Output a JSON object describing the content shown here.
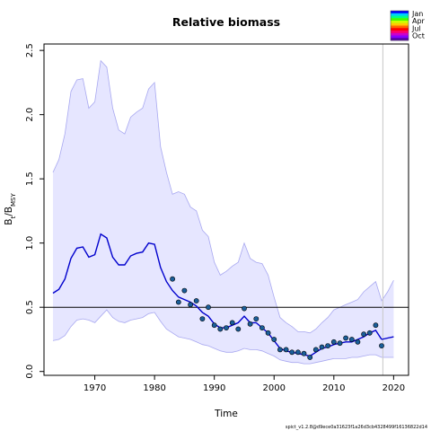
{
  "chart_data": {
    "type": "line",
    "title": "Relative biomass",
    "xlabel": "Time",
    "ylabel": "B_t/B_MSY",
    "xlim": [
      1961.5,
      2022.5
    ],
    "ylim": [
      -0.03,
      2.55
    ],
    "xticks": [
      "1970",
      "1980",
      "1990",
      "2000",
      "2010",
      "2020"
    ],
    "yticks": [
      "0.0",
      "0.5",
      "1.0",
      "1.5",
      "2.0",
      "2.5"
    ],
    "reference_line_y": 0.5,
    "vertical_line_x": 2018.2,
    "series": [
      {
        "kind": "estimate",
        "color": "#0000cd",
        "x": [
          1963,
          1964,
          1965,
          1966,
          1967,
          1968,
          1969,
          1970,
          1971,
          1972,
          1973,
          1974,
          1975,
          1976,
          1977,
          1978,
          1979,
          1980,
          1981,
          1982,
          1983,
          1984,
          1985,
          1986,
          1987,
          1988,
          1989,
          1990,
          1991,
          1992,
          1993,
          1994,
          1995,
          1996,
          1997,
          1998,
          1999,
          2000,
          2001,
          2002,
          2003,
          2004,
          2005,
          2006,
          2007,
          2008,
          2009,
          2010,
          2011,
          2012,
          2013,
          2014,
          2015,
          2016,
          2017,
          2018
        ],
        "y": [
          0.61,
          0.64,
          0.72,
          0.88,
          0.96,
          0.97,
          0.89,
          0.91,
          1.07,
          1.04,
          0.89,
          0.83,
          0.83,
          0.9,
          0.92,
          0.93,
          1.0,
          0.99,
          0.81,
          0.7,
          0.63,
          0.58,
          0.56,
          0.54,
          0.51,
          0.46,
          0.43,
          0.37,
          0.34,
          0.34,
          0.36,
          0.38,
          0.43,
          0.38,
          0.38,
          0.34,
          0.3,
          0.24,
          0.18,
          0.16,
          0.15,
          0.14,
          0.13,
          0.12,
          0.15,
          0.18,
          0.19,
          0.21,
          0.22,
          0.23,
          0.23,
          0.25,
          0.27,
          0.3,
          0.32,
          0.25
        ]
      },
      {
        "kind": "forecast",
        "color": "#0000cd",
        "x": [
          2018,
          2019,
          2020
        ],
        "y": [
          0.25,
          0.26,
          0.27
        ]
      }
    ],
    "confidence_band": {
      "color": "#e6e6ff",
      "x": [
        1963,
        1964,
        1965,
        1966,
        1967,
        1968,
        1969,
        1970,
        1971,
        1972,
        1973,
        1974,
        1975,
        1976,
        1977,
        1978,
        1979,
        1980,
        1981,
        1982,
        1983,
        1984,
        1985,
        1986,
        1987,
        1988,
        1989,
        1990,
        1991,
        1992,
        1993,
        1994,
        1995,
        1996,
        1997,
        1998,
        1999,
        2000,
        2001,
        2002,
        2003,
        2004,
        2005,
        2006,
        2007,
        2008,
        2009,
        2010,
        2011,
        2012,
        2013,
        2014,
        2015,
        2016,
        2017,
        2018,
        2019,
        2020
      ],
      "upper": [
        1.55,
        1.65,
        1.85,
        2.18,
        2.27,
        2.28,
        2.05,
        2.1,
        2.42,
        2.37,
        2.05,
        1.88,
        1.85,
        1.98,
        2.02,
        2.05,
        2.2,
        2.25,
        1.75,
        1.55,
        1.38,
        1.4,
        1.38,
        1.28,
        1.25,
        1.1,
        1.05,
        0.85,
        0.75,
        0.78,
        0.82,
        0.85,
        1.0,
        0.88,
        0.85,
        0.84,
        0.75,
        0.58,
        0.42,
        0.38,
        0.35,
        0.31,
        0.31,
        0.3,
        0.33,
        0.38,
        0.42,
        0.48,
        0.5,
        0.52,
        0.54,
        0.56,
        0.62,
        0.66,
        0.7,
        0.55,
        0.62,
        0.71
      ],
      "lower": [
        0.24,
        0.25,
        0.28,
        0.35,
        0.4,
        0.41,
        0.4,
        0.38,
        0.43,
        0.48,
        0.42,
        0.39,
        0.38,
        0.4,
        0.41,
        0.42,
        0.45,
        0.46,
        0.39,
        0.33,
        0.3,
        0.27,
        0.26,
        0.25,
        0.23,
        0.21,
        0.2,
        0.18,
        0.16,
        0.15,
        0.15,
        0.16,
        0.18,
        0.17,
        0.17,
        0.16,
        0.14,
        0.12,
        0.09,
        0.08,
        0.07,
        0.07,
        0.06,
        0.06,
        0.07,
        0.08,
        0.09,
        0.1,
        0.1,
        0.1,
        0.11,
        0.11,
        0.12,
        0.13,
        0.13,
        0.11,
        0.11,
        0.11
      ]
    },
    "observations": {
      "color": "#1a5e9a",
      "x": [
        1983,
        1984,
        1985,
        1986,
        1987,
        1988,
        1989,
        1990,
        1991,
        1992,
        1993,
        1994,
        1995,
        1996,
        1997,
        1998,
        1999,
        2000,
        2001,
        2002,
        2003,
        2004,
        2005,
        2006,
        2007,
        2008,
        2009,
        2010,
        2011,
        2012,
        2013,
        2014,
        2015,
        2016,
        2017,
        2018
      ],
      "y": [
        0.72,
        0.54,
        0.63,
        0.52,
        0.55,
        0.41,
        0.5,
        0.36,
        0.33,
        0.34,
        0.38,
        0.33,
        0.49,
        0.37,
        0.41,
        0.34,
        0.3,
        0.25,
        0.17,
        0.17,
        0.15,
        0.15,
        0.14,
        0.11,
        0.17,
        0.19,
        0.2,
        0.23,
        0.22,
        0.26,
        0.25,
        0.23,
        0.29,
        0.3,
        0.36,
        0.2
      ]
    },
    "legend": {
      "placement": "top-right",
      "labels": [
        "Jan",
        "Apr",
        "Jul",
        "Oct"
      ],
      "colors": [
        "#0000ff",
        "#00ccff",
        "#00ff88",
        "#44ff00",
        "#ccff00",
        "#ffcc00",
        "#ff6600",
        "#ff0000",
        "#ff0066",
        "#cc00cc",
        "#8800ff",
        "#5500aa"
      ]
    },
    "grid": false
  },
  "footer_text": "spict_v1.2.8@d9ece0a31623f1a26d3cb4328499f16136822d14"
}
